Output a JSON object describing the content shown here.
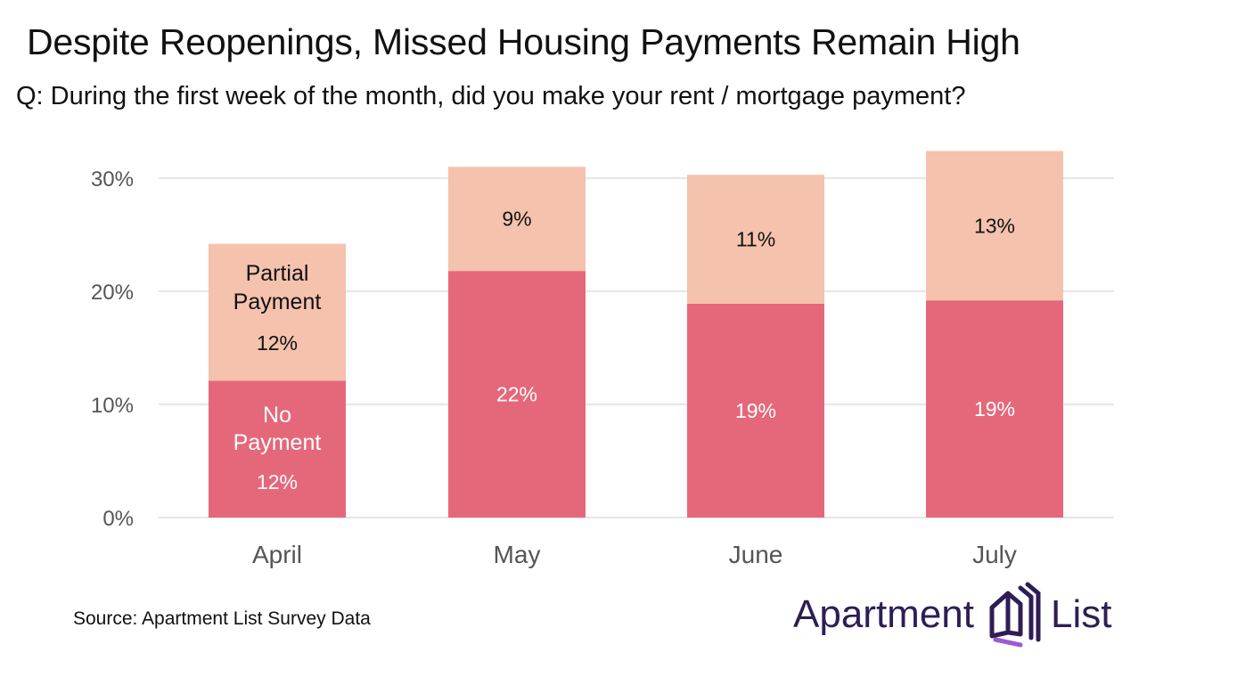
{
  "title": "Despite Reopenings, Missed Housing Payments Remain High",
  "subtitle": "Q: During the first week of the month, did you make your rent / mortgage payment?",
  "source": "Source: Apartment List Survey Data",
  "brand": {
    "word_left": "Apartment",
    "word_right": "List",
    "icon": "apartment-list-logo-icon"
  },
  "colors": {
    "no_payment": "#e5687a",
    "partial_payment": "#f4c2ad",
    "grid": "#dddddd",
    "brand": "#2f1d55"
  },
  "chart_data": {
    "type": "bar",
    "stacked": true,
    "title": "Despite Reopenings, Missed Housing Payments Remain High",
    "subtitle": "Q: During the first week of the month, did you make your rent / mortgage payment?",
    "categories": [
      "April",
      "May",
      "June",
      "July"
    ],
    "series": [
      {
        "name": "No Payment",
        "values": [
          12.1,
          21.8,
          18.9,
          19.2
        ],
        "labels": [
          "12%",
          "22%",
          "19%",
          "19%"
        ]
      },
      {
        "name": "Partial Payment",
        "values": [
          12.1,
          9.2,
          11.4,
          13.2
        ],
        "labels": [
          "12%",
          "9%",
          "11%",
          "13%"
        ]
      }
    ],
    "ylim": [
      0,
      32.5
    ],
    "yticks": [
      0,
      10,
      20,
      30
    ],
    "ytick_labels": [
      "0%",
      "10%",
      "20%",
      "30%"
    ],
    "grid": true,
    "inline_series_labels": {
      "No Payment": [
        "No",
        "Payment"
      ],
      "Partial Payment": [
        "Partial",
        "Payment"
      ]
    }
  }
}
